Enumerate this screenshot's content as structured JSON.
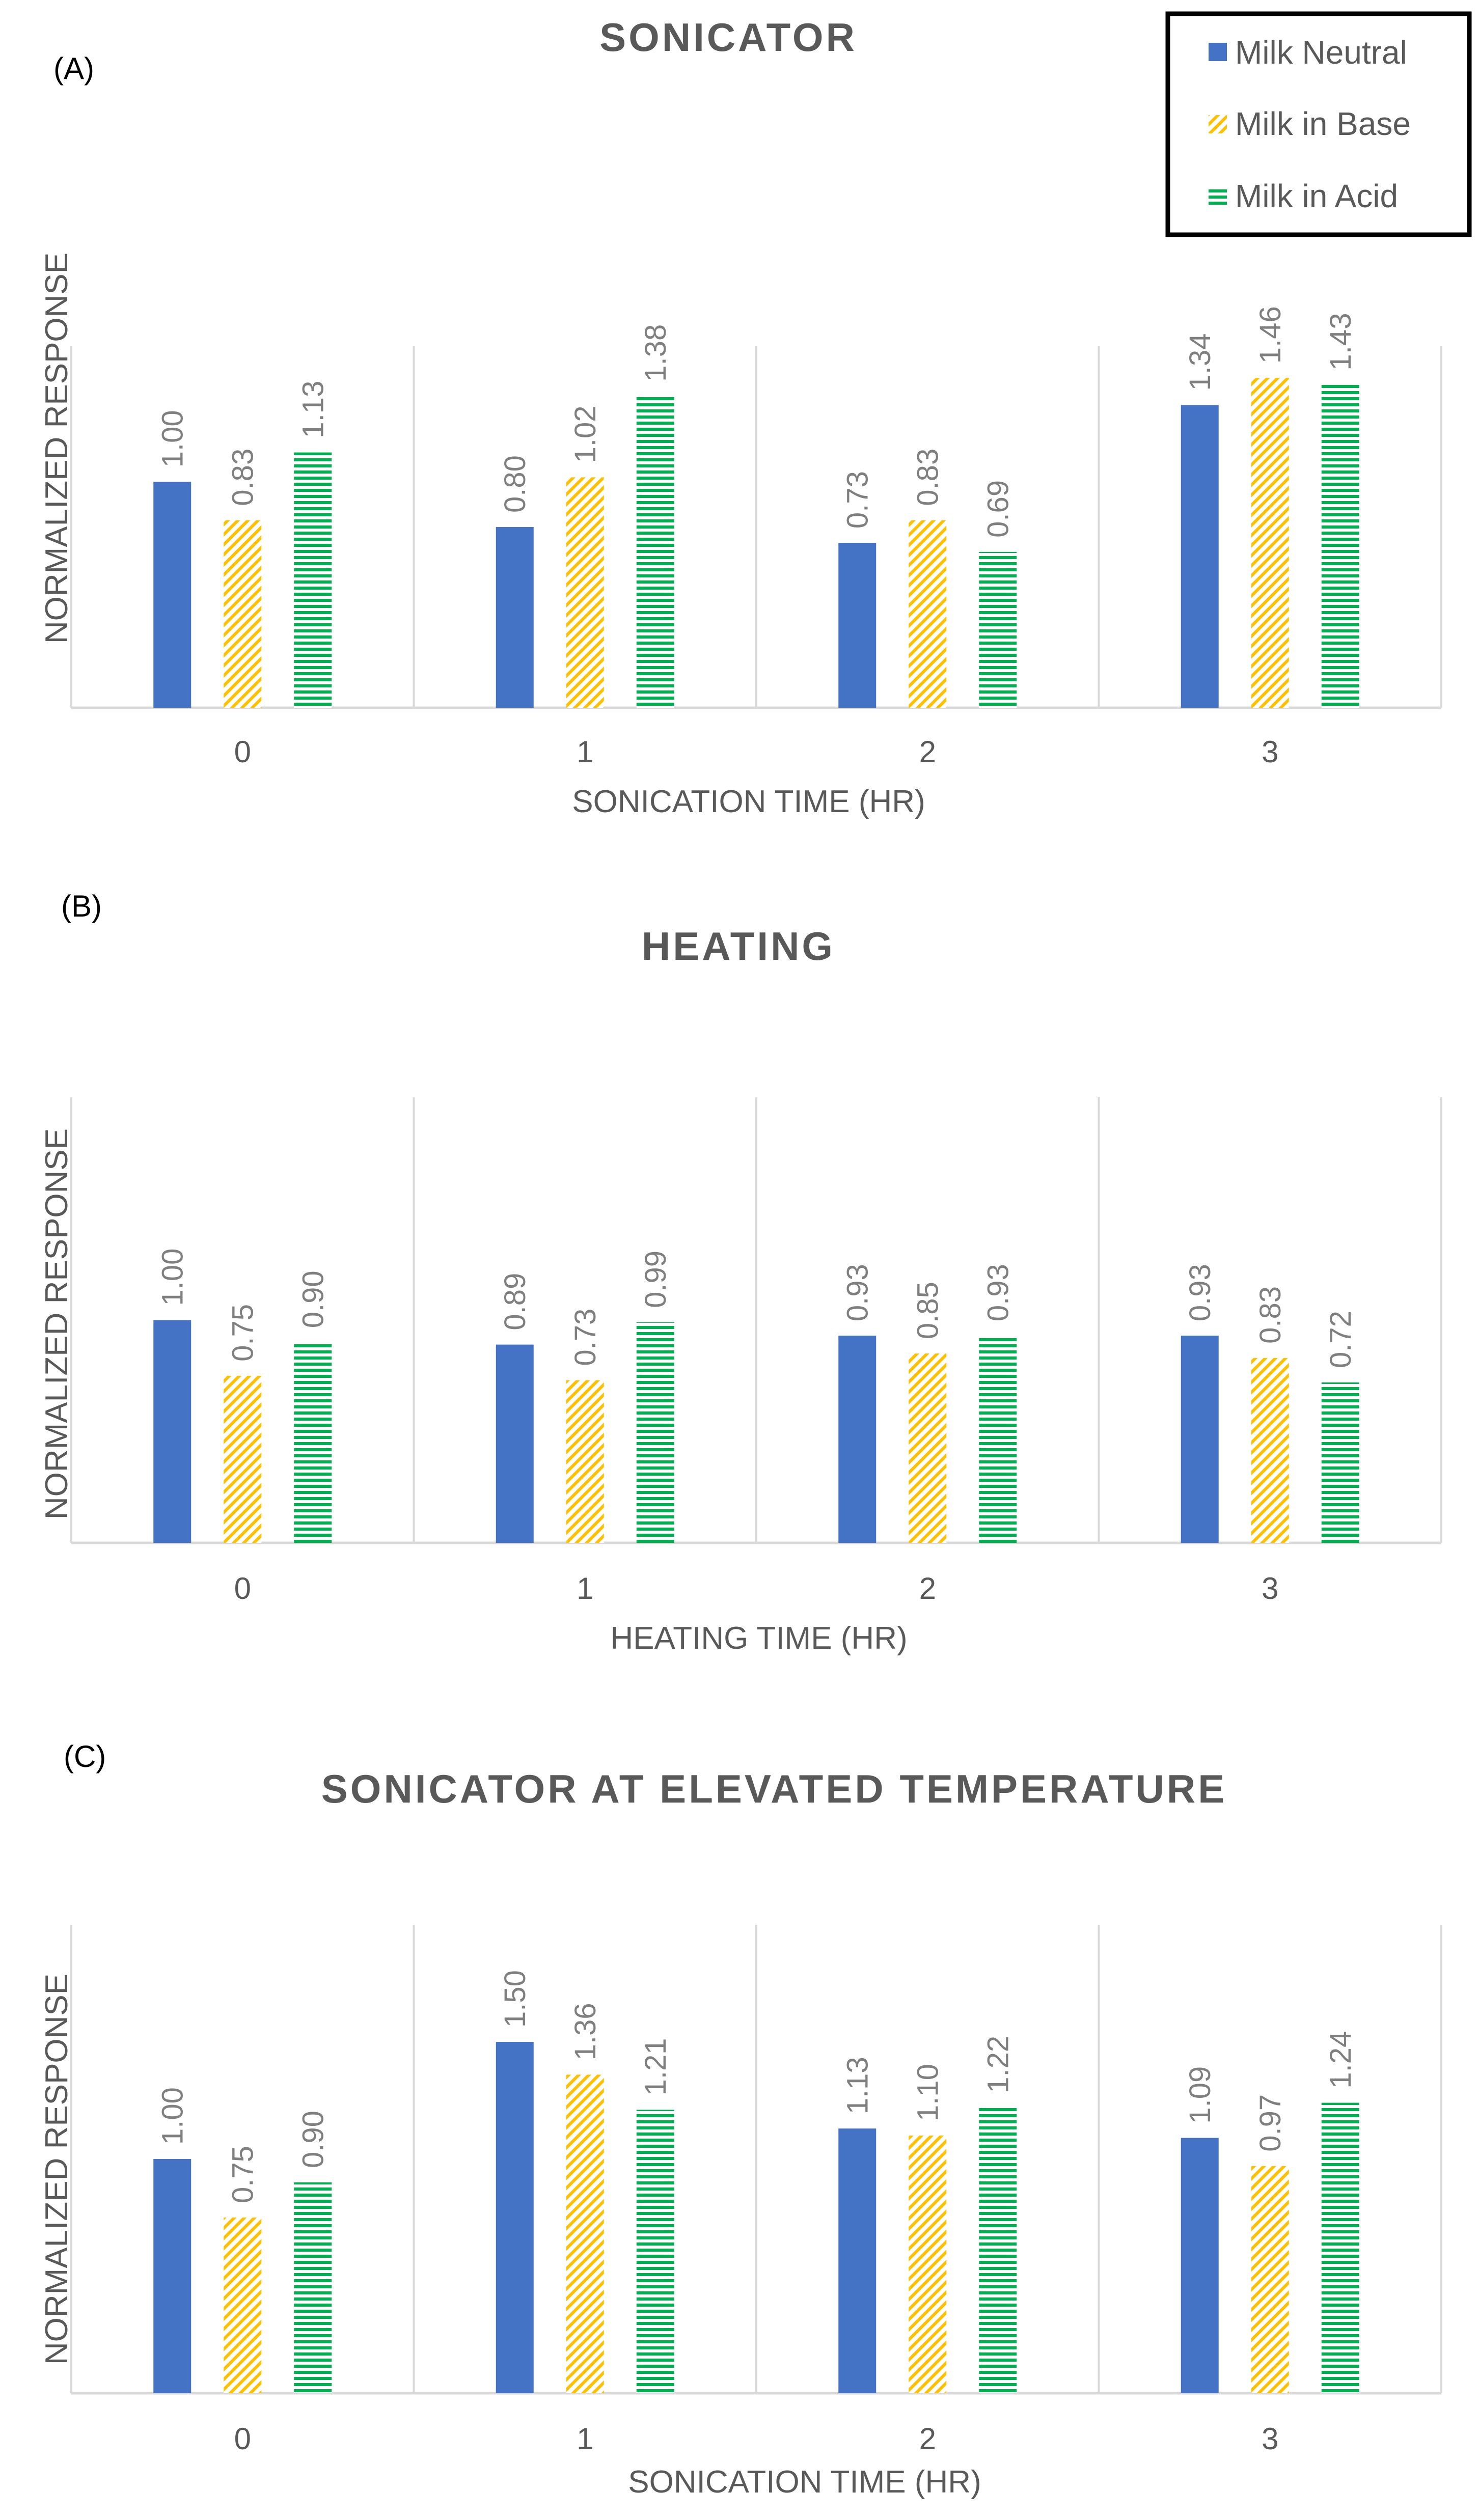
{
  "colors": {
    "neutral": "#4472C4",
    "base": "#FFC000",
    "acid": "#00B050",
    "grid": "#D9D9D9",
    "text": "#595959",
    "label": "#7F7F7F"
  },
  "legend": {
    "items": [
      {
        "name": "Milk Neutral",
        "pattern": "solid"
      },
      {
        "name": "Milk in Base",
        "pattern": "diagonal-hatch"
      },
      {
        "name": "Milk in Acid",
        "pattern": "horizontal-lines"
      }
    ]
  },
  "chart_data": [
    {
      "type": "bar",
      "panel": "(A)",
      "title": "SONICATOR",
      "xlabel": "SONICATION TIME (HR)",
      "ylabel": "NORMALIZED RESPONSE",
      "categories": [
        "0",
        "1",
        "2",
        "3"
      ],
      "ylim": [
        0,
        1.6
      ],
      "grid": "vertical separators",
      "series": [
        {
          "name": "Milk Neutral",
          "values": [
            1.0,
            0.8,
            0.73,
            1.34
          ],
          "labels": [
            "1.00",
            "0.80",
            "0.73",
            "1.34"
          ]
        },
        {
          "name": "Milk in Base",
          "values": [
            0.83,
            1.02,
            0.83,
            1.46
          ],
          "labels": [
            "0.83",
            "1.02",
            "0.83",
            "1.46"
          ]
        },
        {
          "name": "Milk in Acid",
          "values": [
            1.13,
            1.38,
            0.69,
            1.43
          ],
          "labels": [
            "1.13",
            "1.38",
            "0.69",
            "1.43"
          ]
        }
      ]
    },
    {
      "type": "bar",
      "panel": "(B)",
      "title": "HEATING",
      "xlabel": "HEATING TIME (HR)",
      "ylabel": "NORMALIZED RESPONSE",
      "categories": [
        "0",
        "1",
        "2",
        "3"
      ],
      "ylim": [
        0,
        2.0
      ],
      "grid": "vertical separators",
      "series": [
        {
          "name": "Milk Neutral",
          "values": [
            1.0,
            0.89,
            0.93,
            0.93
          ],
          "labels": [
            "1.00",
            "0.89",
            "0.93",
            "0.93"
          ]
        },
        {
          "name": "Milk in Base",
          "values": [
            0.75,
            0.73,
            0.85,
            0.83
          ],
          "labels": [
            "0.75",
            "0.73",
            "0.85",
            "0.83"
          ]
        },
        {
          "name": "Milk in Acid",
          "values": [
            0.9,
            0.99,
            0.93,
            0.72
          ],
          "labels": [
            "0.90",
            "0.99",
            "0.93",
            "0.72"
          ]
        }
      ]
    },
    {
      "type": "bar",
      "panel": "(C)",
      "title": "SONICATOR AT ELEVATED TEMPERATURE",
      "xlabel": "SONICATION TIME (HR)",
      "ylabel": "NORMALIZED RESPONSE",
      "categories": [
        "0",
        "1",
        "2",
        "3"
      ],
      "ylim": [
        0,
        2.0
      ],
      "grid": "vertical separators",
      "series": [
        {
          "name": "Milk Neutral",
          "values": [
            1.0,
            1.5,
            1.13,
            1.09
          ],
          "labels": [
            "1.00",
            "1.50",
            "1.13",
            "1.09"
          ]
        },
        {
          "name": "Milk in Base",
          "values": [
            0.75,
            1.36,
            1.1,
            0.97
          ],
          "labels": [
            "0.75",
            "1.36",
            "1.10",
            "0.97"
          ]
        },
        {
          "name": "Milk in Acid",
          "values": [
            0.9,
            1.21,
            1.22,
            1.24
          ],
          "labels": [
            "0.90",
            "1.21",
            "1.22",
            "1.24"
          ]
        }
      ]
    }
  ]
}
